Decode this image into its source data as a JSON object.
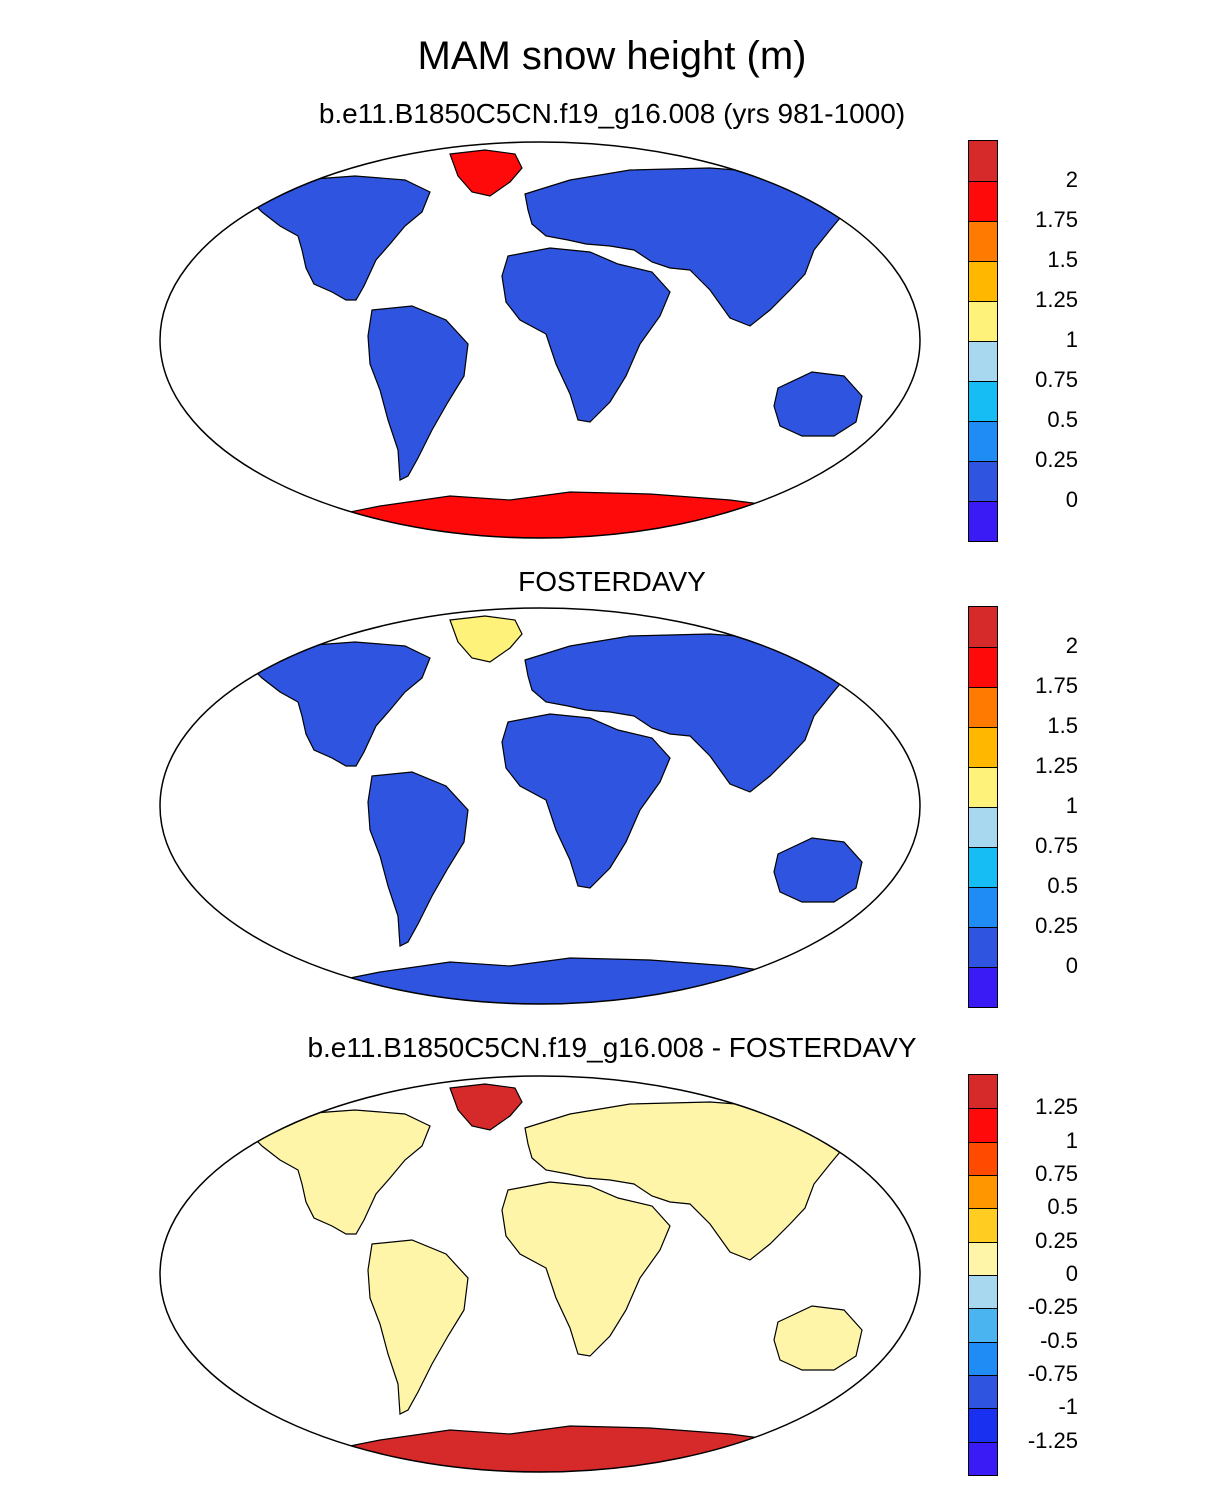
{
  "figure": {
    "title": "MAM snow height (m)"
  },
  "panels": [
    {
      "title": "b.e11.B1850C5CN.f19_g16.008 (yrs 981-1000)",
      "land_color": "#2f55e0",
      "colorbar": {
        "labels": [
          "2",
          "1.75",
          "1.5",
          "1.25",
          "1",
          "0.75",
          "0.5",
          "0.25",
          "0"
        ],
        "colors": [
          "#d62a2a",
          "#ff0a0a",
          "#ff7a00",
          "#ffb700",
          "#fff27a",
          "#a8d8f0",
          "#16bdf5",
          "#1f8cf5",
          "#2f55e0",
          "#3a1af5"
        ]
      }
    },
    {
      "title": "FOSTERDAVY",
      "land_color": "#2f55e0",
      "colorbar": {
        "labels": [
          "2",
          "1.75",
          "1.5",
          "1.25",
          "1",
          "0.75",
          "0.5",
          "0.25",
          "0"
        ],
        "colors": [
          "#d62a2a",
          "#ff0a0a",
          "#ff7a00",
          "#ffb700",
          "#fff27a",
          "#a8d8f0",
          "#16bdf5",
          "#1f8cf5",
          "#2f55e0",
          "#3a1af5"
        ]
      }
    },
    {
      "title": "b.e11.B1850C5CN.f19_g16.008 - FOSTERDAVY",
      "land_color": "#fff5a8",
      "colorbar": {
        "labels": [
          "1.25",
          "1",
          "0.75",
          "0.5",
          "0.25",
          "0",
          "-0.25",
          "-0.5",
          "-0.75",
          "-1",
          "-1.25"
        ],
        "colors": [
          "#d62a2a",
          "#ff0a0a",
          "#ff4a00",
          "#ff9600",
          "#ffcc22",
          "#fff5a8",
          "#a8d8f0",
          "#4ab4f0",
          "#1f8cf5",
          "#2f55e0",
          "#1a30f0",
          "#3a1af5"
        ]
      }
    }
  ]
}
